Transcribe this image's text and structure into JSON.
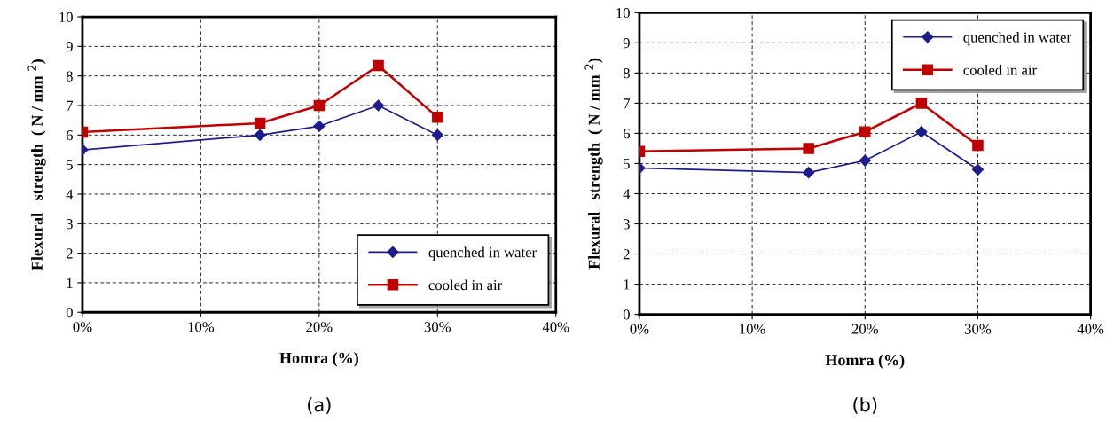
{
  "chart_data": [
    {
      "type": "line",
      "xlabel": "Homra (%)",
      "ylabel": "Flexural   strength  ( N / mm $^{2}$)",
      "annotations": [
        "(a)"
      ],
      "x": [
        0,
        15,
        20,
        25,
        30
      ],
      "xlim": [
        0,
        40
      ],
      "xticks": [
        {
          "value": 0,
          "label": "0%"
        },
        {
          "value": 10,
          "label": "10%"
        },
        {
          "value": 20,
          "label": "20%"
        },
        {
          "value": 30,
          "label": "30%"
        },
        {
          "value": 40,
          "label": "40%"
        }
      ],
      "ylim": [
        0,
        10
      ],
      "yticks": [
        0,
        1,
        2,
        3,
        4,
        5,
        6,
        7,
        8,
        9,
        10
      ],
      "grid": true,
      "legend": "bottom right",
      "series": [
        {
          "name": "quenched in water",
          "color": "#1c1c8c",
          "marker": "diamond",
          "values": [
            5.5,
            6.0,
            6.3,
            7.0,
            6.0
          ]
        },
        {
          "name": "cooled in air",
          "color": "#c00000",
          "marker": "square",
          "values": [
            6.1,
            6.4,
            7.0,
            8.35,
            6.6
          ]
        }
      ]
    },
    {
      "type": "line",
      "xlabel": "Homra (%)",
      "ylabel": "Flexural   strength  ( N / mm $^{2}$)",
      "annotations": [
        "(b)"
      ],
      "x": [
        0,
        15,
        20,
        25,
        30
      ],
      "xlim": [
        0,
        40
      ],
      "xticks": [
        {
          "value": 0,
          "label": "0%"
        },
        {
          "value": 10,
          "label": "10%"
        },
        {
          "value": 20,
          "label": "20%"
        },
        {
          "value": 30,
          "label": "30%"
        },
        {
          "value": 40,
          "label": "40%"
        }
      ],
      "ylim": [
        0,
        10
      ],
      "yticks": [
        0,
        1,
        2,
        3,
        4,
        5,
        6,
        7,
        8,
        9,
        10
      ],
      "grid": true,
      "legend": "top right",
      "series": [
        {
          "name": "quenched in water",
          "color": "#1c1c8c",
          "marker": "diamond",
          "values": [
            4.85,
            4.7,
            5.1,
            6.05,
            4.8
          ]
        },
        {
          "name": "cooled in air",
          "color": "#c00000",
          "marker": "square",
          "values": [
            5.4,
            5.5,
            6.05,
            7.0,
            5.6
          ]
        }
      ]
    }
  ]
}
